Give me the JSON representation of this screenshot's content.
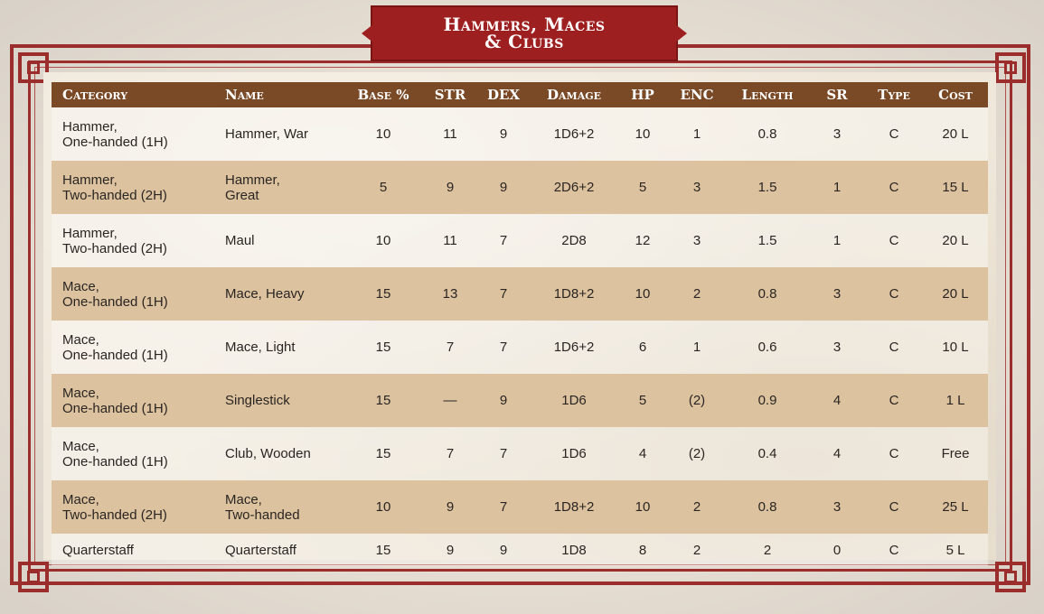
{
  "title": {
    "line1": "Hammers, Maces",
    "line2": "& Clubs"
  },
  "colors": {
    "frame": "#9c2d2d",
    "banner": "#9e1f1f",
    "header_bg": "#7a4a27",
    "row_alt": "#dcc29e",
    "parchment": "#efe7d9"
  },
  "table": {
    "headers": [
      "Category",
      "Name",
      "Base %",
      "STR",
      "DEX",
      "Damage",
      "HP",
      "ENC",
      "Length",
      "SR",
      "Type",
      "Cost"
    ],
    "rows": [
      {
        "category": [
          "Hammer,",
          "One-handed (1H)"
        ],
        "name": [
          "Hammer, War",
          ""
        ],
        "base": "10",
        "str": "11",
        "dex": "9",
        "damage": "1D6+2",
        "hp": "10",
        "enc": "1",
        "length": "0.8",
        "sr": "3",
        "type": "C",
        "cost": "20 L"
      },
      {
        "category": [
          "Hammer,",
          "Two-handed (2H)"
        ],
        "name": [
          "Hammer,",
          "Great"
        ],
        "base": "5",
        "str": "9",
        "dex": "9",
        "damage": "2D6+2",
        "hp": "5",
        "enc": "3",
        "length": "1.5",
        "sr": "1",
        "type": "C",
        "cost": "15 L"
      },
      {
        "category": [
          "Hammer,",
          "Two-handed (2H)"
        ],
        "name": [
          "Maul",
          ""
        ],
        "base": "10",
        "str": "11",
        "dex": "7",
        "damage": "2D8",
        "hp": "12",
        "enc": "3",
        "length": "1.5",
        "sr": "1",
        "type": "C",
        "cost": "20 L"
      },
      {
        "category": [
          "Mace,",
          "One-handed (1H)"
        ],
        "name": [
          "Mace, Heavy",
          ""
        ],
        "base": "15",
        "str": "13",
        "dex": "7",
        "damage": "1D8+2",
        "hp": "10",
        "enc": "2",
        "length": "0.8",
        "sr": "3",
        "type": "C",
        "cost": "20 L"
      },
      {
        "category": [
          "Mace,",
          "One-handed (1H)"
        ],
        "name": [
          "Mace, Light",
          ""
        ],
        "base": "15",
        "str": "7",
        "dex": "7",
        "damage": "1D6+2",
        "hp": "6",
        "enc": "1",
        "length": "0.6",
        "sr": "3",
        "type": "C",
        "cost": "10 L"
      },
      {
        "category": [
          "Mace,",
          "One-handed (1H)"
        ],
        "name": [
          "Singlestick",
          ""
        ],
        "base": "15",
        "str": "—",
        "dex": "9",
        "damage": "1D6",
        "hp": "5",
        "enc": "(2)",
        "length": "0.9",
        "sr": "4",
        "type": "C",
        "cost": "1 L"
      },
      {
        "category": [
          "Mace,",
          "One-handed (1H)"
        ],
        "name": [
          "Club, Wooden",
          ""
        ],
        "base": "15",
        "str": "7",
        "dex": "7",
        "damage": "1D6",
        "hp": "4",
        "enc": "(2)",
        "length": "0.4",
        "sr": "4",
        "type": "C",
        "cost": "Free"
      },
      {
        "category": [
          "Mace,",
          "Two-handed (2H)"
        ],
        "name": [
          "Mace,",
          "Two-handed"
        ],
        "base": "10",
        "str": "9",
        "dex": "7",
        "damage": "1D8+2",
        "hp": "10",
        "enc": "2",
        "length": "0.8",
        "sr": "3",
        "type": "C",
        "cost": "25 L"
      },
      {
        "category": [
          "Quarterstaff",
          ""
        ],
        "name": [
          "Quarterstaff",
          ""
        ],
        "base": "15",
        "str": "9",
        "dex": "9",
        "damage": "1D8",
        "hp": "8",
        "enc": "2",
        "length": "2",
        "sr": "0",
        "type": "C",
        "cost": "5 L"
      }
    ]
  }
}
